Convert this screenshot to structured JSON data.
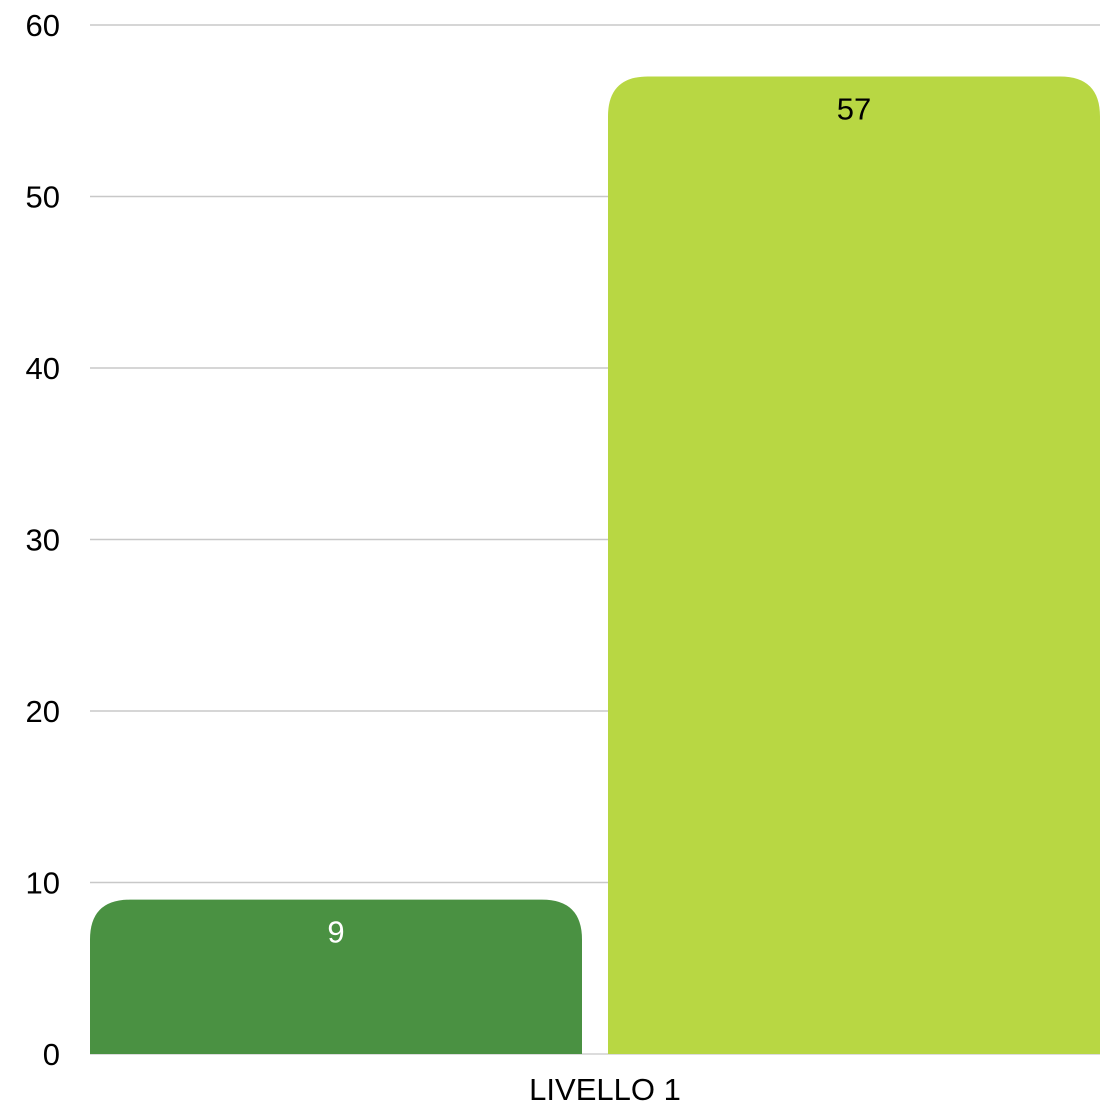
{
  "chart_data": {
    "type": "bar",
    "categories": [
      "LIVELLO 1"
    ],
    "series": [
      {
        "values": [
          9
        ],
        "color": "#4a9142",
        "label_color": "#ffffff"
      },
      {
        "values": [
          57
        ],
        "color": "#b8d743",
        "label_color": "#000000"
      }
    ],
    "ylim": [
      0,
      60
    ],
    "yticks": [
      0,
      10,
      20,
      30,
      40,
      50,
      60
    ],
    "grid": true,
    "gridline_color": "#c8c8c8",
    "legend": "none",
    "title": "",
    "xlabel": "",
    "ylabel": ""
  }
}
